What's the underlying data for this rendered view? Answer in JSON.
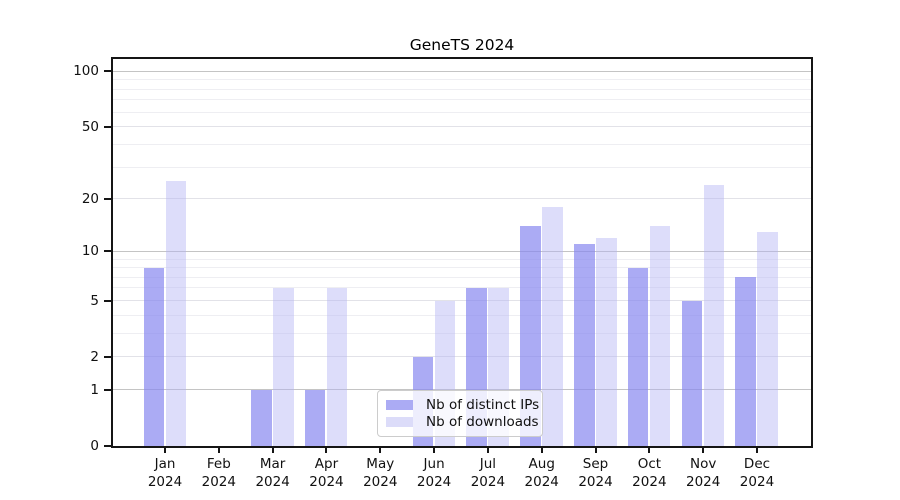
{
  "chart_data": {
    "type": "bar",
    "title": "GeneTS 2024",
    "categories": [
      "Jan",
      "Feb",
      "Mar",
      "Apr",
      "May",
      "Jun",
      "Jul",
      "Aug",
      "Sep",
      "Oct",
      "Nov",
      "Dec"
    ],
    "year_label": "2024",
    "series": [
      {
        "name": "Nb of distinct IPs",
        "color": "#ababf4",
        "fill": "rgba(135,135,240,0.70)",
        "values": [
          8,
          0,
          1,
          1,
          0,
          2,
          6,
          14,
          11,
          8,
          5,
          7
        ]
      },
      {
        "name": "Nb of downloads",
        "color": "#dcdcf9",
        "fill": "rgba(180,180,245,0.45)",
        "values": [
          25,
          0,
          6,
          6,
          0,
          5,
          6,
          18,
          12,
          14,
          24,
          13
        ]
      }
    ],
    "yscale": "symlog",
    "ylim": [
      0,
      115
    ],
    "y_ticks": [
      0,
      1,
      2,
      5,
      10,
      20,
      50,
      100
    ],
    "grid": {
      "major_values": [
        1,
        10,
        100
      ],
      "mid_values": [
        2,
        5,
        20,
        50
      ],
      "minor_values": [
        3,
        4,
        6,
        7,
        8,
        9,
        30,
        40,
        60,
        70,
        80,
        90
      ],
      "major_color": "#c4c4c4",
      "mid_color": "#e2e2e8",
      "minor_color": "#eeeef2"
    },
    "legend_position": "lower-center",
    "axis_color": "#151515",
    "background_color": "#ffffff"
  }
}
